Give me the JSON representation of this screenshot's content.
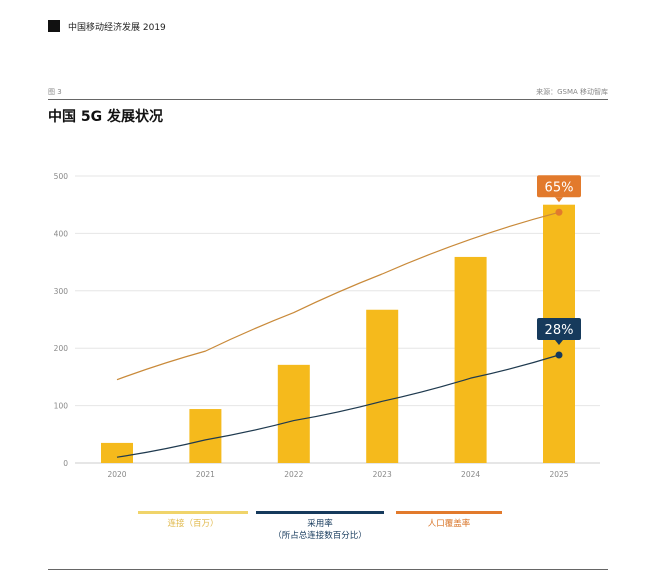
{
  "header": {
    "doc_title": "中国移动经济发展 2019",
    "figure_no": "图 3",
    "source": "来源：GSMA 移动智库"
  },
  "colors": {
    "bars": "#F5BA1C",
    "adoption": "#163A5C",
    "coverage": "#E27A2C",
    "grid": "#e6e6e6"
  },
  "chart_data": {
    "type": "bar+line",
    "title": "中国 5G 发展状况",
    "categories": [
      "2020",
      "2021",
      "2022",
      "2023",
      "2024",
      "2025"
    ],
    "ylim": [
      0,
      500
    ],
    "yticks": [
      0,
      100,
      200,
      300,
      400,
      500
    ],
    "grid": true,
    "legend_placement": "bottom",
    "series": [
      {
        "name": "连接（百万）",
        "type": "bar",
        "values": [
          35,
          94,
          171,
          267,
          359,
          450
        ]
      },
      {
        "name": "采用率（所占总连接数百分比）",
        "type": "line",
        "unit": "%",
        "values": [
          1.5,
          6,
          11,
          16,
          22,
          28
        ],
        "end_label": "28%"
      },
      {
        "name": "人口覆盖率",
        "type": "line",
        "unit": "%",
        "values": [
          21.6,
          29,
          39,
          49,
          58,
          65
        ],
        "end_label": "65%"
      }
    ]
  },
  "legend": {
    "connections": "连接（百万）",
    "adoption_line1": "采用率",
    "adoption_line2": "（所占总连接数百分比）",
    "coverage": "人口覆盖率"
  }
}
